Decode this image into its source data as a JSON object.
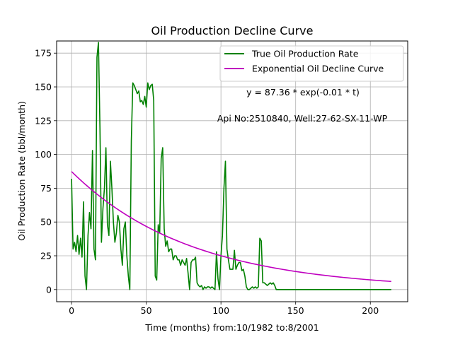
{
  "chart_data": {
    "type": "line",
    "title": "Oil Production Decline Curve",
    "xlabel": "Time (months) from:10/1982 to:8/2001",
    "ylabel": "Oil Production Rate (bbl/month)",
    "xlim": [
      -10,
      225
    ],
    "ylim": [
      -9,
      184
    ],
    "x_ticks": [
      0,
      50,
      100,
      150,
      200
    ],
    "y_ticks": [
      0,
      25,
      50,
      75,
      100,
      125,
      150,
      175
    ],
    "grid": true,
    "legend_position": "top-right",
    "annotations": [
      "y = 87.36 * exp(-0.01 * t)",
      "Api No:2510840, Well:27-62-SX-11-WP"
    ],
    "series": [
      {
        "name": "True Oil Production Rate",
        "color": "#008000",
        "points": [
          [
            0,
            82
          ],
          [
            1,
            30
          ],
          [
            2,
            35
          ],
          [
            3,
            28
          ],
          [
            4,
            40
          ],
          [
            5,
            26
          ],
          [
            6,
            38
          ],
          [
            7,
            24
          ],
          [
            8,
            65
          ],
          [
            9,
            10
          ],
          [
            10,
            0
          ],
          [
            11,
            40
          ],
          [
            12,
            57
          ],
          [
            13,
            45
          ],
          [
            14,
            103
          ],
          [
            15,
            30
          ],
          [
            16,
            22
          ],
          [
            17,
            172
          ],
          [
            18,
            183
          ],
          [
            19,
            120
          ],
          [
            20,
            35
          ],
          [
            21,
            60
          ],
          [
            22,
            75
          ],
          [
            23,
            105
          ],
          [
            24,
            48
          ],
          [
            25,
            40
          ],
          [
            26,
            95
          ],
          [
            27,
            75
          ],
          [
            28,
            50
          ],
          [
            29,
            35
          ],
          [
            30,
            42
          ],
          [
            31,
            55
          ],
          [
            32,
            50
          ],
          [
            33,
            30
          ],
          [
            34,
            18
          ],
          [
            35,
            45
          ],
          [
            36,
            50
          ],
          [
            37,
            25
          ],
          [
            38,
            10
          ],
          [
            39,
            0
          ],
          [
            40,
            110
          ],
          [
            41,
            153
          ],
          [
            42,
            151
          ],
          [
            43,
            148
          ],
          [
            44,
            145
          ],
          [
            45,
            147
          ],
          [
            46,
            139
          ],
          [
            47,
            140
          ],
          [
            48,
            137
          ],
          [
            49,
            143
          ],
          [
            50,
            135
          ],
          [
            51,
            153
          ],
          [
            52,
            148
          ],
          [
            53,
            151
          ],
          [
            54,
            152
          ],
          [
            55,
            140
          ],
          [
            56,
            10
          ],
          [
            57,
            7
          ],
          [
            58,
            48
          ],
          [
            59,
            42
          ],
          [
            60,
            97
          ],
          [
            61,
            105
          ],
          [
            62,
            45
          ],
          [
            63,
            32
          ],
          [
            64,
            36
          ],
          [
            65,
            28
          ],
          [
            66,
            30
          ],
          [
            67,
            30
          ],
          [
            68,
            22
          ],
          [
            69,
            25
          ],
          [
            70,
            25
          ],
          [
            71,
            22
          ],
          [
            72,
            22
          ],
          [
            73,
            18
          ],
          [
            74,
            22
          ],
          [
            75,
            20
          ],
          [
            76,
            18
          ],
          [
            77,
            23
          ],
          [
            78,
            12
          ],
          [
            79,
            0
          ],
          [
            80,
            20
          ],
          [
            81,
            22
          ],
          [
            82,
            22
          ],
          [
            83,
            24
          ],
          [
            84,
            5
          ],
          [
            85,
            3
          ],
          [
            86,
            2
          ],
          [
            87,
            3
          ],
          [
            88,
            0
          ],
          [
            89,
            2
          ],
          [
            90,
            1
          ],
          [
            91,
            2
          ],
          [
            92,
            2
          ],
          [
            93,
            1
          ],
          [
            94,
            2
          ],
          [
            95,
            1
          ],
          [
            96,
            0
          ],
          [
            97,
            28
          ],
          [
            98,
            8
          ],
          [
            99,
            0
          ],
          [
            100,
            25
          ],
          [
            101,
            40
          ],
          [
            102,
            75
          ],
          [
            103,
            95
          ],
          [
            104,
            30
          ],
          [
            105,
            22
          ],
          [
            106,
            15
          ],
          [
            107,
            15
          ],
          [
            108,
            15
          ],
          [
            109,
            29
          ],
          [
            110,
            15
          ],
          [
            111,
            18
          ],
          [
            112,
            20
          ],
          [
            113,
            20
          ],
          [
            114,
            14
          ],
          [
            115,
            15
          ],
          [
            116,
            10
          ],
          [
            117,
            2
          ],
          [
            118,
            0
          ],
          [
            119,
            0
          ],
          [
            120,
            1
          ],
          [
            121,
            2
          ],
          [
            122,
            1
          ],
          [
            123,
            2
          ],
          [
            124,
            1
          ],
          [
            125,
            2
          ],
          [
            126,
            38
          ],
          [
            127,
            36
          ],
          [
            128,
            5
          ],
          [
            129,
            5
          ],
          [
            130,
            4
          ],
          [
            131,
            3
          ],
          [
            132,
            4
          ],
          [
            133,
            5
          ],
          [
            134,
            4
          ],
          [
            135,
            5
          ],
          [
            136,
            3
          ],
          [
            137,
            0
          ],
          [
            140,
            0
          ],
          [
            150,
            0
          ],
          [
            160,
            0
          ],
          [
            170,
            0
          ],
          [
            180,
            0
          ],
          [
            190,
            0
          ],
          [
            200,
            0
          ],
          [
            214,
            0
          ]
        ]
      },
      {
        "name": "Exponential Oil Decline Curve",
        "color": "#bf00bf",
        "equation": {
          "a": 87.36,
          "b": -0.0125
        },
        "x_range": [
          0,
          214
        ]
      }
    ]
  }
}
